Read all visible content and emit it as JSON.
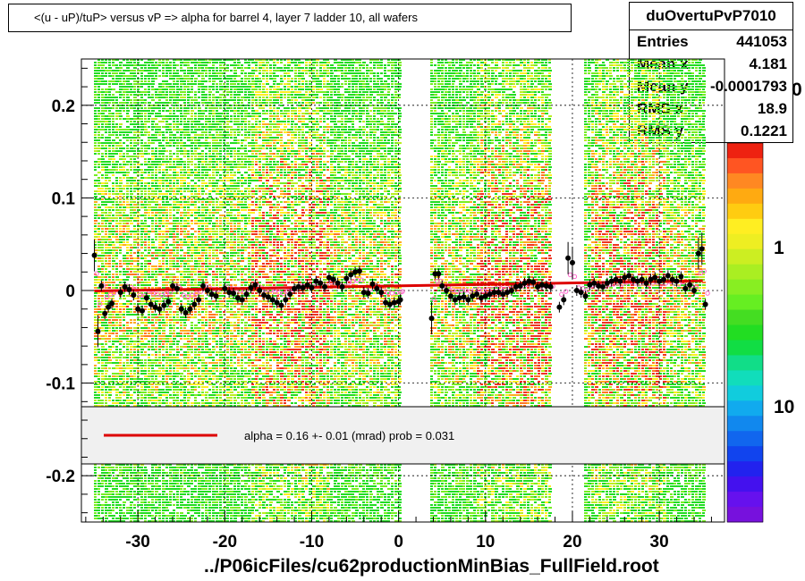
{
  "title": "<(u - uP)/tuP>  versus   vP => alpha for barrel 4, layer 7 ladder 10, all wafers",
  "stats": {
    "name": "duOvertuPvP7010",
    "rows": [
      {
        "key": "Entries",
        "value": "441053"
      },
      {
        "key": "Mean x",
        "value": "4.181"
      },
      {
        "key": "Mean y",
        "value": "-0.0001793"
      },
      {
        "key": "RMS x",
        "value": "18.9"
      },
      {
        "key": "RMS y",
        "value": "0.1221"
      }
    ]
  },
  "file_label": "../P06icFiles/cu62productionMinBias_FullField.root",
  "legend": {
    "text": "alpha =    0.16 +-  0.01 (mrad) prob = 0.031",
    "line_color": "#dd0000",
    "fill": "#f0f0f0"
  },
  "colors": {
    "profile_points": "#000000",
    "fit_line": "#dd0000",
    "secondary_points": "#ff66cc"
  },
  "chart_data": {
    "type": "heatmap",
    "title": "<(u - uP)/tuP>  versus   vP => alpha for barrel 4, layer 7 ladder 10, all wafers",
    "xlabel": "",
    "ylabel": "",
    "xlim": [
      -36.5,
      37.5
    ],
    "ylim": [
      -0.25,
      0.25
    ],
    "x_ticks": [
      -30,
      -20,
      -10,
      0,
      10,
      20,
      30
    ],
    "y_ticks": [
      -0.2,
      -0.1,
      0,
      0.1,
      0.2
    ],
    "x_tick_labels": [
      "-30",
      "-20",
      "-10",
      "0",
      "10",
      "20",
      "30"
    ],
    "y_tick_labels": [
      "-0.2",
      "-0.1",
      "0",
      "0.1",
      "0.2"
    ],
    "grid": true,
    "log_z": true,
    "colorbar_ticks": [
      1,
      10
    ],
    "colorbar_labels": [
      "1",
      "10"
    ],
    "colorbar_partial_label": "0",
    "data_regions": [
      [
        -35.3,
        0.2
      ],
      [
        3.8,
        17.5
      ],
      [
        21.2,
        35.3
      ]
    ],
    "hot_regions": [
      [
        -17,
        -8
      ],
      [
        9,
        17.5
      ],
      [
        22,
        31
      ]
    ],
    "fit_line": {
      "x": [
        -35,
        35
      ],
      "y": [
        -0.0005,
        0.0105
      ]
    },
    "profile_points": [
      [
        -35,
        0.038
      ],
      [
        -34.6,
        -0.044
      ],
      [
        -34.2,
        0.005
      ],
      [
        -33.8,
        -0.025
      ],
      [
        -33.4,
        -0.018
      ],
      [
        -33,
        -0.014
      ],
      [
        -32,
        -0.002
      ],
      [
        -31.5,
        0.004
      ],
      [
        -31,
        0.001
      ],
      [
        -30.5,
        -0.005
      ],
      [
        -30,
        -0.02
      ],
      [
        -29.5,
        -0.022
      ],
      [
        -29,
        -0.008
      ],
      [
        -28.5,
        -0.015
      ],
      [
        -28,
        -0.018
      ],
      [
        -27.5,
        -0.02
      ],
      [
        -27,
        -0.016
      ],
      [
        -26.5,
        -0.012
      ],
      [
        -26,
        0.005
      ],
      [
        -25.5,
        0.002
      ],
      [
        -25,
        -0.02
      ],
      [
        -24.5,
        -0.024
      ],
      [
        -24,
        -0.02
      ],
      [
        -23.5,
        -0.015
      ],
      [
        -23,
        -0.01
      ],
      [
        -22.5,
        0.005
      ],
      [
        -22,
        0.0
      ],
      [
        -21.5,
        -0.004
      ],
      [
        -21,
        -0.006
      ],
      [
        -20,
        0.002
      ],
      [
        -19.5,
        -0.002
      ],
      [
        -19,
        -0.003
      ],
      [
        -18.5,
        -0.008
      ],
      [
        -18,
        -0.01
      ],
      [
        -17.5,
        -0.004
      ],
      [
        -17,
        0.003
      ],
      [
        -16.5,
        0.006
      ],
      [
        -16,
        0.0
      ],
      [
        -15.5,
        -0.005
      ],
      [
        -15,
        -0.007
      ],
      [
        -14.5,
        -0.01
      ],
      [
        -14,
        -0.013
      ],
      [
        -13.5,
        -0.016
      ],
      [
        -13,
        -0.01
      ],
      [
        -12.5,
        -0.004
      ],
      [
        -12,
        0.002
      ],
      [
        -11.5,
        0.004
      ],
      [
        -11,
        0.003
      ],
      [
        -10.5,
        0.006
      ],
      [
        -10,
        0.003
      ],
      [
        -9.5,
        0.01
      ],
      [
        -9,
        0.008
      ],
      [
        -8.5,
        0.004
      ],
      [
        -8,
        0.014
      ],
      [
        -7.5,
        0.012
      ],
      [
        -7,
        0.008
      ],
      [
        -6.5,
        0.004
      ],
      [
        -6,
        0.013
      ],
      [
        -5.5,
        0.017
      ],
      [
        -5,
        0.02
      ],
      [
        -4.5,
        0.021
      ],
      [
        -4,
        -0.002
      ],
      [
        -3.5,
        -0.003
      ],
      [
        -3,
        0.007
      ],
      [
        -2.5,
        0.002
      ],
      [
        -2,
        -0.002
      ],
      [
        -1.5,
        -0.013
      ],
      [
        -1,
        -0.015
      ],
      [
        -0.5,
        -0.013
      ],
      [
        0,
        -0.012
      ],
      [
        0.2,
        -0.01
      ],
      [
        3.8,
        -0.03
      ],
      [
        4.2,
        0.018
      ],
      [
        4.6,
        0.018
      ],
      [
        5,
        0.005
      ],
      [
        5.5,
        0.0
      ],
      [
        6,
        -0.006
      ],
      [
        6.5,
        -0.01
      ],
      [
        7,
        -0.008
      ],
      [
        7.5,
        -0.007
      ],
      [
        8,
        -0.01
      ],
      [
        8.5,
        -0.006
      ],
      [
        9,
        -0.004
      ],
      [
        9.5,
        -0.008
      ],
      [
        10,
        -0.006
      ],
      [
        10.5,
        -0.004
      ],
      [
        11,
        -0.002
      ],
      [
        11.5,
        -0.002
      ],
      [
        12,
        -0.004
      ],
      [
        12.5,
        -0.002
      ],
      [
        13,
        0.0
      ],
      [
        13.5,
        0.004
      ],
      [
        14,
        0.005
      ],
      [
        14.5,
        0.008
      ],
      [
        15,
        0.01
      ],
      [
        15.5,
        0.009
      ],
      [
        16,
        0.004
      ],
      [
        16.5,
        0.006
      ],
      [
        17,
        0.005
      ],
      [
        17.5,
        0.004
      ],
      [
        18.5,
        -0.018
      ],
      [
        19,
        -0.01
      ],
      [
        19.5,
        0.035
      ],
      [
        20,
        0.03
      ],
      [
        20.5,
        0.0
      ],
      [
        21,
        -0.002
      ],
      [
        21.5,
        -0.006
      ],
      [
        22,
        0.006
      ],
      [
        22.5,
        0.008
      ],
      [
        23,
        0.005
      ],
      [
        23.5,
        0.004
      ],
      [
        24,
        0.008
      ],
      [
        24.5,
        0.01
      ],
      [
        25,
        0.012
      ],
      [
        25.5,
        0.01
      ],
      [
        26,
        0.014
      ],
      [
        26.5,
        0.016
      ],
      [
        27,
        0.012
      ],
      [
        27.5,
        0.01
      ],
      [
        28,
        0.012
      ],
      [
        28.5,
        0.008
      ],
      [
        29,
        0.012
      ],
      [
        29.5,
        0.014
      ],
      [
        30,
        0.01
      ],
      [
        30.5,
        0.012
      ],
      [
        31,
        0.016
      ],
      [
        31.5,
        0.012
      ],
      [
        32,
        0.01
      ],
      [
        32.5,
        0.015
      ],
      [
        33,
        0.002
      ],
      [
        33.5,
        0.006
      ],
      [
        34,
        0.0
      ],
      [
        34.5,
        0.04
      ],
      [
        34.9,
        0.045
      ],
      [
        35.3,
        -0.015
      ]
    ]
  }
}
